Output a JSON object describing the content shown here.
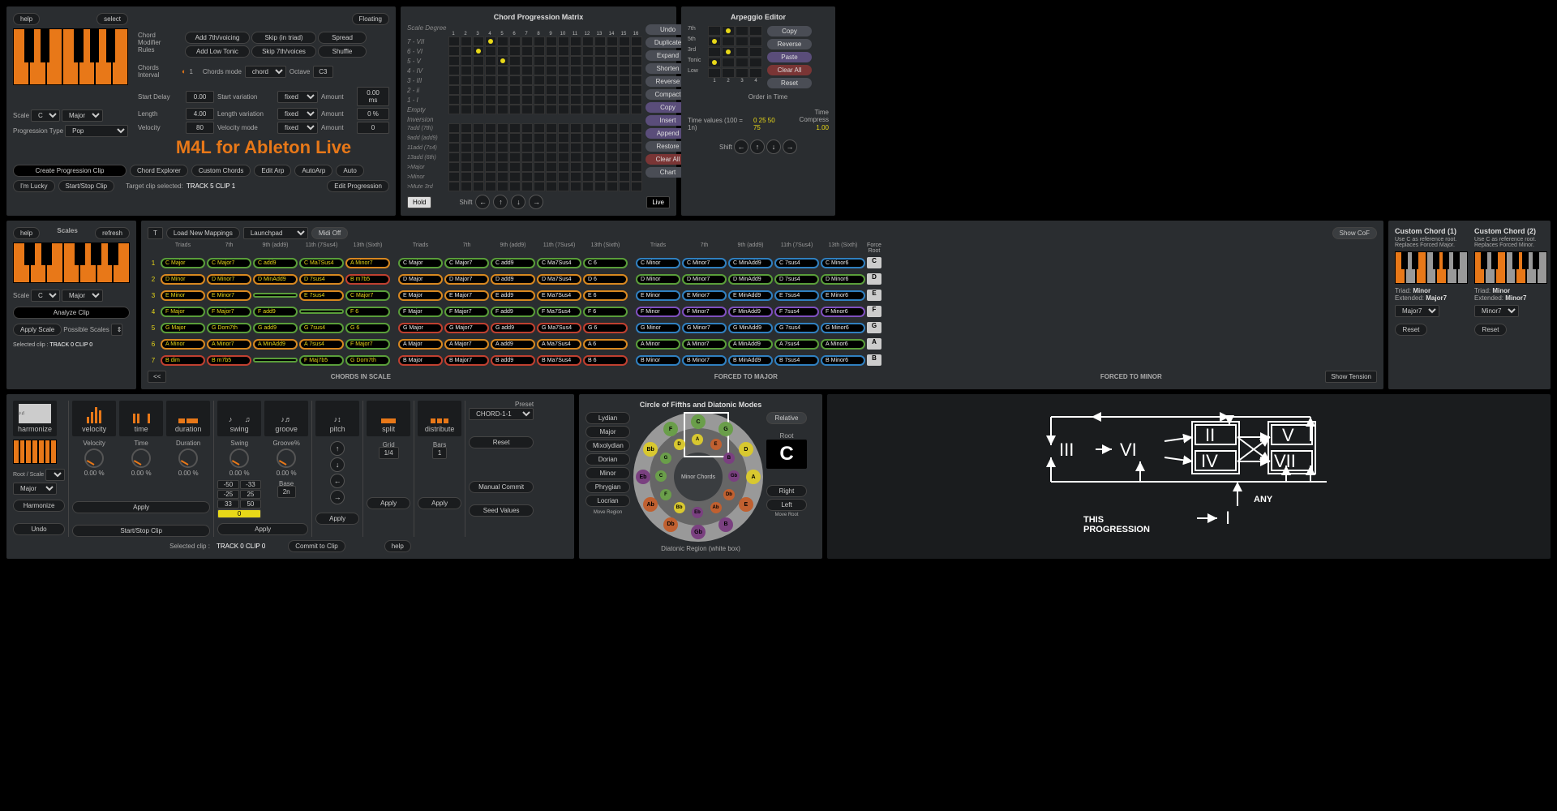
{
  "main": {
    "help": "help",
    "select": "select",
    "chord_mod": "Chord Modifier Rules",
    "btns": {
      "add7": "Add 7th/voicing",
      "addLow": "Add Low Tonic",
      "skipTriad": "Skip (in triad)",
      "skip7": "Skip 7th/voices",
      "spread": "Spread",
      "shuffle": "Shuffle",
      "floating": "Floating"
    },
    "chordsInterval": "Chords Interval",
    "intervalN": "1",
    "chordsMode": "Chords mode",
    "chordsModeV": "chord",
    "octave": "Octave",
    "octaveV": "C3",
    "startDelay": "Start Delay",
    "startDelayV": "0.00",
    "startVar": "Start variation",
    "startVarV": "fixed",
    "amount": "Amount",
    "amountMs": "0.00 ms",
    "length": "Length",
    "lengthV": "4.00",
    "lengthVar": "Length variation",
    "lengthVarV": "fixed",
    "amountPct": "0 %",
    "velocity": "Velocity",
    "velocityV": "80",
    "velMode": "Velocity mode",
    "velModeV": "fixed",
    "amount0": "0",
    "scale": "Scale",
    "scaleRoot": "C",
    "scaleType": "Major",
    "progType": "Progression Type",
    "progTypeV": "Pop",
    "title": "M4L for Ableton Live",
    "createClip": "Create Progression Clip",
    "lucky": "I'm Lucky",
    "startStop": "Start/Stop Clip",
    "chordExp": "Chord Explorer",
    "custom": "Custom Chords",
    "editArp": "Edit Arp",
    "autoArp": "AutoArp",
    "auto": "Auto",
    "target": "Target clip selected:",
    "targetV": "TRACK 5 CLIP 1",
    "editProg": "Edit Progression"
  },
  "matrix": {
    "title": "Chord Progression Matrix",
    "scaleDeg": "Scale Degree",
    "rows": [
      "7 - VII",
      "6 - VI",
      "5 - V",
      "4 - IV",
      "3 - III",
      "2 - ii",
      "1 - I",
      "Empty"
    ],
    "inversion": "Inversion",
    "invRows": [
      "7add (7th)",
      "9add (add9)",
      "11add (7s4)",
      "13add (6th)",
      ">Major",
      ">Minor",
      ">Mute 3rd"
    ],
    "dots": [
      [
        2,
        1
      ],
      [
        3,
        0
      ],
      [
        4,
        2
      ]
    ],
    "btns": [
      "Undo",
      "Duplicate",
      "Expand",
      "Shorten",
      "Reverse",
      "Compact",
      "Copy",
      "Insert",
      "Append",
      "Restore",
      "Clear All",
      "Chart"
    ],
    "btnStyles": [
      "",
      "",
      "",
      "",
      "",
      "",
      "purple",
      "purple",
      "purple",
      "",
      "red",
      ""
    ],
    "hold": "Hold",
    "shift": "Shift",
    "live": "Live"
  },
  "arp": {
    "title": "Arpeggio Editor",
    "rows": [
      "7th",
      "5th",
      "3rd",
      "Tonic",
      "Low"
    ],
    "dots": [
      [
        0,
        1
      ],
      [
        1,
        0
      ],
      [
        2,
        1
      ],
      [
        3,
        0
      ]
    ],
    "orderTime": "Order in Time",
    "btns": [
      "Copy",
      "Reverse",
      "Paste",
      "Clear All",
      "Reset"
    ],
    "btnStyles": [
      "",
      "",
      "purple",
      "red",
      ""
    ],
    "timeVals": "Time values (100 = 1n)",
    "timeValsV": "0 25 50 75",
    "timeComp": "Time Compress",
    "timeCompV": "1.00",
    "shift": "Shift"
  },
  "scales": {
    "help": "help",
    "scales": "Scales",
    "refresh": "refresh",
    "scale": "Scale",
    "root": "C",
    "type": "Major",
    "analyze": "Analyze Clip",
    "possible": "Possible Scales",
    "apply": "Apply Scale",
    "selected": "Selected clip :",
    "selectedV": "TRACK 0 CLIP 0"
  },
  "chords": {
    "t": "T",
    "loadMap": "Load New Mappings",
    "device": "Launchpad",
    "midiOff": "Midi Off",
    "showCof": "Show CoF",
    "hdrs": [
      "Triads",
      "7th",
      "9th (add9)",
      "11th (7Sus4)",
      "13th (Sixth)"
    ],
    "forceRoot": "Force Root",
    "roots": [
      "C",
      "D",
      "E",
      "F",
      "G",
      "A",
      "B"
    ],
    "rowsL": [
      [
        "C Major",
        "C Major7",
        "C add9",
        "C Ma7Sus4",
        "A Minor7"
      ],
      [
        "D Minor",
        "D Minor7",
        "D MinAdd9",
        "D 7sus4",
        "B m7b5"
      ],
      [
        "E Minor",
        "E Minor7",
        "",
        "E 7sus4",
        "C Major7"
      ],
      [
        "F Major",
        "F Major7",
        "F add9",
        "",
        "F 6"
      ],
      [
        "G Major",
        "G Dom7th",
        "G add9",
        "G 7sus4",
        "G 6"
      ],
      [
        "A Minor",
        "A Minor7",
        "A MinAdd9",
        "A 7sus4",
        "F Major7"
      ],
      [
        "B dim",
        "B m7b5",
        "",
        "F Maj7b5",
        "G Dom7th"
      ]
    ],
    "rowsM": [
      [
        "C Major",
        "C Major7",
        "C add9",
        "C Ma7Sus4",
        "C 6"
      ],
      [
        "D Major",
        "D Major7",
        "D add9",
        "D Ma7Sus4",
        "D 6"
      ],
      [
        "E Major",
        "E Major7",
        "E add9",
        "E Ma7Sus4",
        "E 6"
      ],
      [
        "F Major",
        "F Major7",
        "F add9",
        "F Ma7Sus4",
        "F 6"
      ],
      [
        "G Major",
        "G Major7",
        "G add9",
        "G Ma7Sus4",
        "G 6"
      ],
      [
        "A Major",
        "A Major7",
        "A add9",
        "A Ma7Sus4",
        "A 6"
      ],
      [
        "B Major",
        "B Major7",
        "B add9",
        "B Ma7Sus4",
        "B 6"
      ]
    ],
    "rowsR": [
      [
        "C Minor",
        "C Minor7",
        "C MinAdd9",
        "C 7sus4",
        "C Minor6"
      ],
      [
        "D Minor",
        "D Minor7",
        "D MinAdd9",
        "D 7sus4",
        "D Minor6"
      ],
      [
        "E Minor",
        "E Minor7",
        "E MinAdd9",
        "E 7sus4",
        "E Minor6"
      ],
      [
        "F Minor",
        "F Minor7",
        "F MinAdd9",
        "F 7sus4",
        "F Minor6"
      ],
      [
        "G Minor",
        "G Minor7",
        "G MinAdd9",
        "G 7sus4",
        "G Minor6"
      ],
      [
        "A Minor",
        "A Minor7",
        "A MinAdd9",
        "A 7sus4",
        "A Minor6"
      ],
      [
        "B Minor",
        "B Minor7",
        "B MinAdd9",
        "B 7sus4",
        "B Minor6"
      ]
    ],
    "colorsL": [
      [
        "green",
        "green",
        "green",
        "green",
        "orange"
      ],
      [
        "orange",
        "orange",
        "orange",
        "orange",
        "red"
      ],
      [
        "orange",
        "orange",
        "green",
        "orange",
        "green"
      ],
      [
        "green",
        "green",
        "green",
        "green",
        "green"
      ],
      [
        "green",
        "green",
        "green",
        "green",
        "green"
      ],
      [
        "orange",
        "orange",
        "orange",
        "orange",
        "green"
      ],
      [
        "red",
        "red",
        "green",
        "green",
        "green"
      ]
    ],
    "colorsR": [
      [
        "blue",
        "blue",
        "blue",
        "blue",
        "blue"
      ],
      [
        "green",
        "green",
        "green",
        "green",
        "green"
      ],
      [
        "blue",
        "blue",
        "blue",
        "blue",
        "blue"
      ],
      [
        "purple",
        "purple",
        "purple",
        "purple",
        "purple"
      ],
      [
        "blue",
        "blue",
        "blue",
        "blue",
        "blue"
      ],
      [
        "green",
        "green",
        "green",
        "green",
        "green"
      ],
      [
        "blue",
        "blue",
        "blue",
        "blue",
        "blue"
      ]
    ],
    "footL": "CHORDS IN SCALE",
    "footM": "FORCED TO  MAJOR",
    "footR": "FORCED TO  MINOR",
    "showTension": "Show Tension",
    "back": "<<"
  },
  "custom": {
    "t1": "Custom Chord (1)",
    "t2": "Custom Chord (2)",
    "note": "Use C as reference root. Replaces Forced Major.",
    "note2": "Use C as reference root. Replaces Forced Minor.",
    "triad": "Triad:",
    "triadV1": "Minor",
    "triadV2": "Minor",
    "ext": "Extended:",
    "extV1": "Major7",
    "extV2": "Minor7",
    "sel1": "Major7",
    "sel2": "Minor7",
    "reset": "Reset"
  },
  "harm": {
    "tools": [
      "harmonize",
      "velocity",
      "time",
      "duration",
      "swing",
      "groove",
      "pitch",
      "split",
      "distribute"
    ],
    "velocity": "Velocity",
    "velPct": "0.00 %",
    "time": "Time",
    "timePct": "0.00 %",
    "duration": "Duration",
    "durPct": "0.00 %",
    "swing": "Swing",
    "swingPct": "0.00 %",
    "groove": "Groove%",
    "groovePct": "0.00 %",
    "swingVals": [
      "-50",
      "-33",
      "-25",
      "25",
      "33",
      "50",
      "0"
    ],
    "base": "Base",
    "baseV": "2n",
    "grid": "Grid",
    "gridV": "1/4",
    "bars": "Bars",
    "barsV": "1",
    "preset": "Preset",
    "presetV": "CHORD-1-1",
    "reset": "Reset",
    "manual": "Manual Commit",
    "seed": "Seed Values",
    "rootScale": "Root / Scale",
    "root": "C",
    "major": "Major",
    "harmonize": "Harmonize",
    "undo": "Undo",
    "apply": "Apply",
    "startStop": "Start/Stop Clip",
    "selected": "Selected clip :",
    "selectedV": "TRACK 0 CLIP 0",
    "commit": "Commit to Clip",
    "help": "help"
  },
  "cof": {
    "title": "Circle of Fifths and Diatonic Modes",
    "modes": [
      "Lydian",
      "Major",
      "Mixolydian",
      "Dorian",
      "Minor",
      "Phrygian",
      "Locrian"
    ],
    "moveRegion": "Move Region",
    "relative": "Relative",
    "root": "Root",
    "rootV": "C",
    "right": "Right",
    "left": "Left",
    "moveRoot": "Move Root",
    "region": "Diatonic Region (white box)",
    "minorChords": "Minor Chords",
    "majorChords": "Major Chords",
    "notesOuter": [
      "C",
      "G",
      "D",
      "A",
      "E",
      "B",
      "Gb",
      "Db",
      "Ab",
      "Eb",
      "Bb",
      "F"
    ],
    "noteColors": [
      "#6a9e4a",
      "#6a9e4a",
      "#d8c830",
      "#d8c830",
      "#c06030",
      "#7a4080",
      "#7a4080",
      "#c06030",
      "#c06030",
      "#7a4080",
      "#d8c830",
      "#6a9e4a"
    ]
  },
  "prog": {
    "nums": [
      "III",
      "VI",
      "II",
      "IV",
      "V",
      "VII",
      "I"
    ],
    "this": "THIS PROGRESSION",
    "any": "ANY"
  }
}
